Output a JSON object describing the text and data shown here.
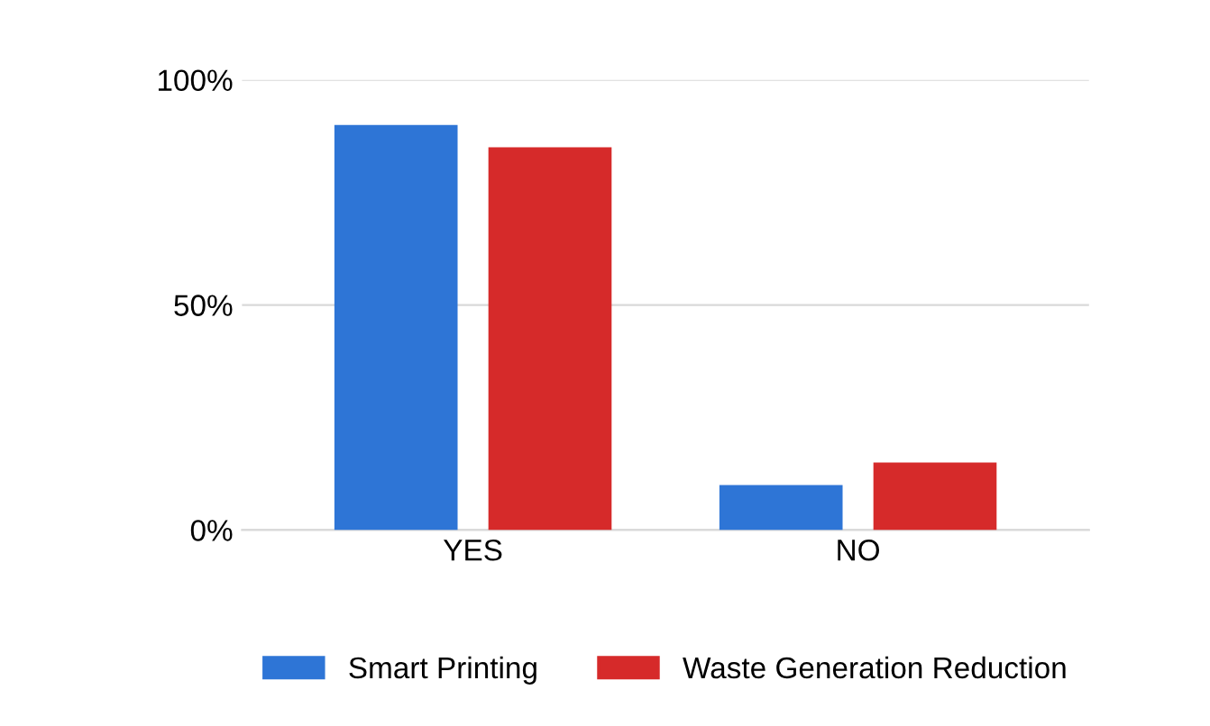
{
  "chart_data": {
    "type": "bar",
    "categories": [
      "YES",
      "NO"
    ],
    "series": [
      {
        "name": "Smart Printing",
        "color": "#2e75d6",
        "values": [
          90,
          10
        ]
      },
      {
        "name": "Waste Generation Reduction",
        "color": "#d62a2a",
        "values": [
          85,
          15
        ]
      }
    ],
    "ylim": [
      0,
      100
    ],
    "yticks": [
      {
        "value": 0,
        "label": "0%"
      },
      {
        "value": 50,
        "label": "50%"
      },
      {
        "value": 100,
        "label": "100%"
      }
    ],
    "grid": "y",
    "legend": "bottom"
  }
}
